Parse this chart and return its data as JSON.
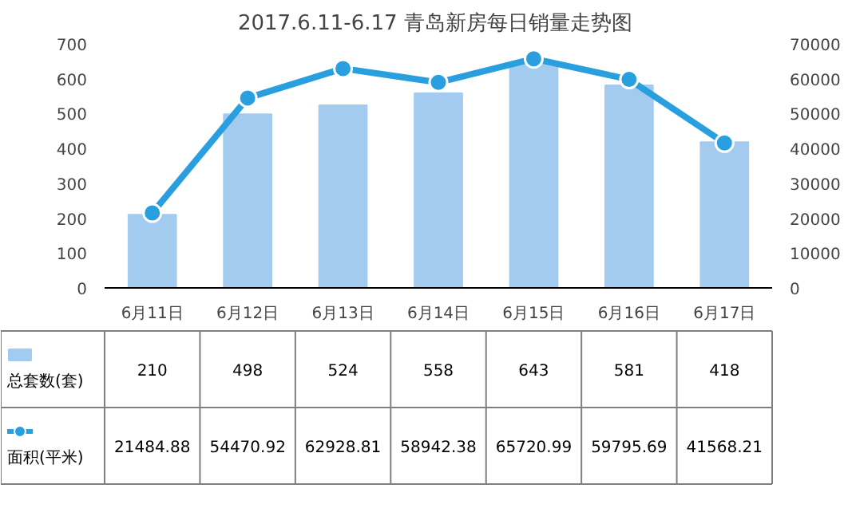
{
  "chart_data": {
    "type": "bar",
    "title": "2017.6.11-6.17  青岛新房每日销量走势图",
    "categories": [
      "6月11日",
      "6月12日",
      "6月13日",
      "6月14日",
      "6月15日",
      "6月16日",
      "6月17日"
    ],
    "series": [
      {
        "name": "总套数(套)",
        "color": "#a3cbf0",
        "values": [
          210,
          498,
          524,
          558,
          643,
          581,
          418
        ]
      },
      {
        "name": "面积(平米)",
        "type": "line",
        "axis": "y2",
        "color": "#2a9fe0",
        "values": [
          21484.88,
          54470.92,
          62928.81,
          58942.38,
          65720.99,
          59795.69,
          41568.21
        ]
      }
    ],
    "ylim": [
      0,
      700
    ],
    "yticks": [
      0,
      100,
      200,
      300,
      400,
      500,
      600,
      700
    ],
    "y2lim": [
      0,
      70000
    ],
    "y2ticks": [
      0,
      10000,
      20000,
      30000,
      40000,
      50000,
      60000,
      70000
    ],
    "data_labels": true,
    "legend": "bottom left",
    "grid": false,
    "marker": "circle",
    "line_style": "solid"
  }
}
